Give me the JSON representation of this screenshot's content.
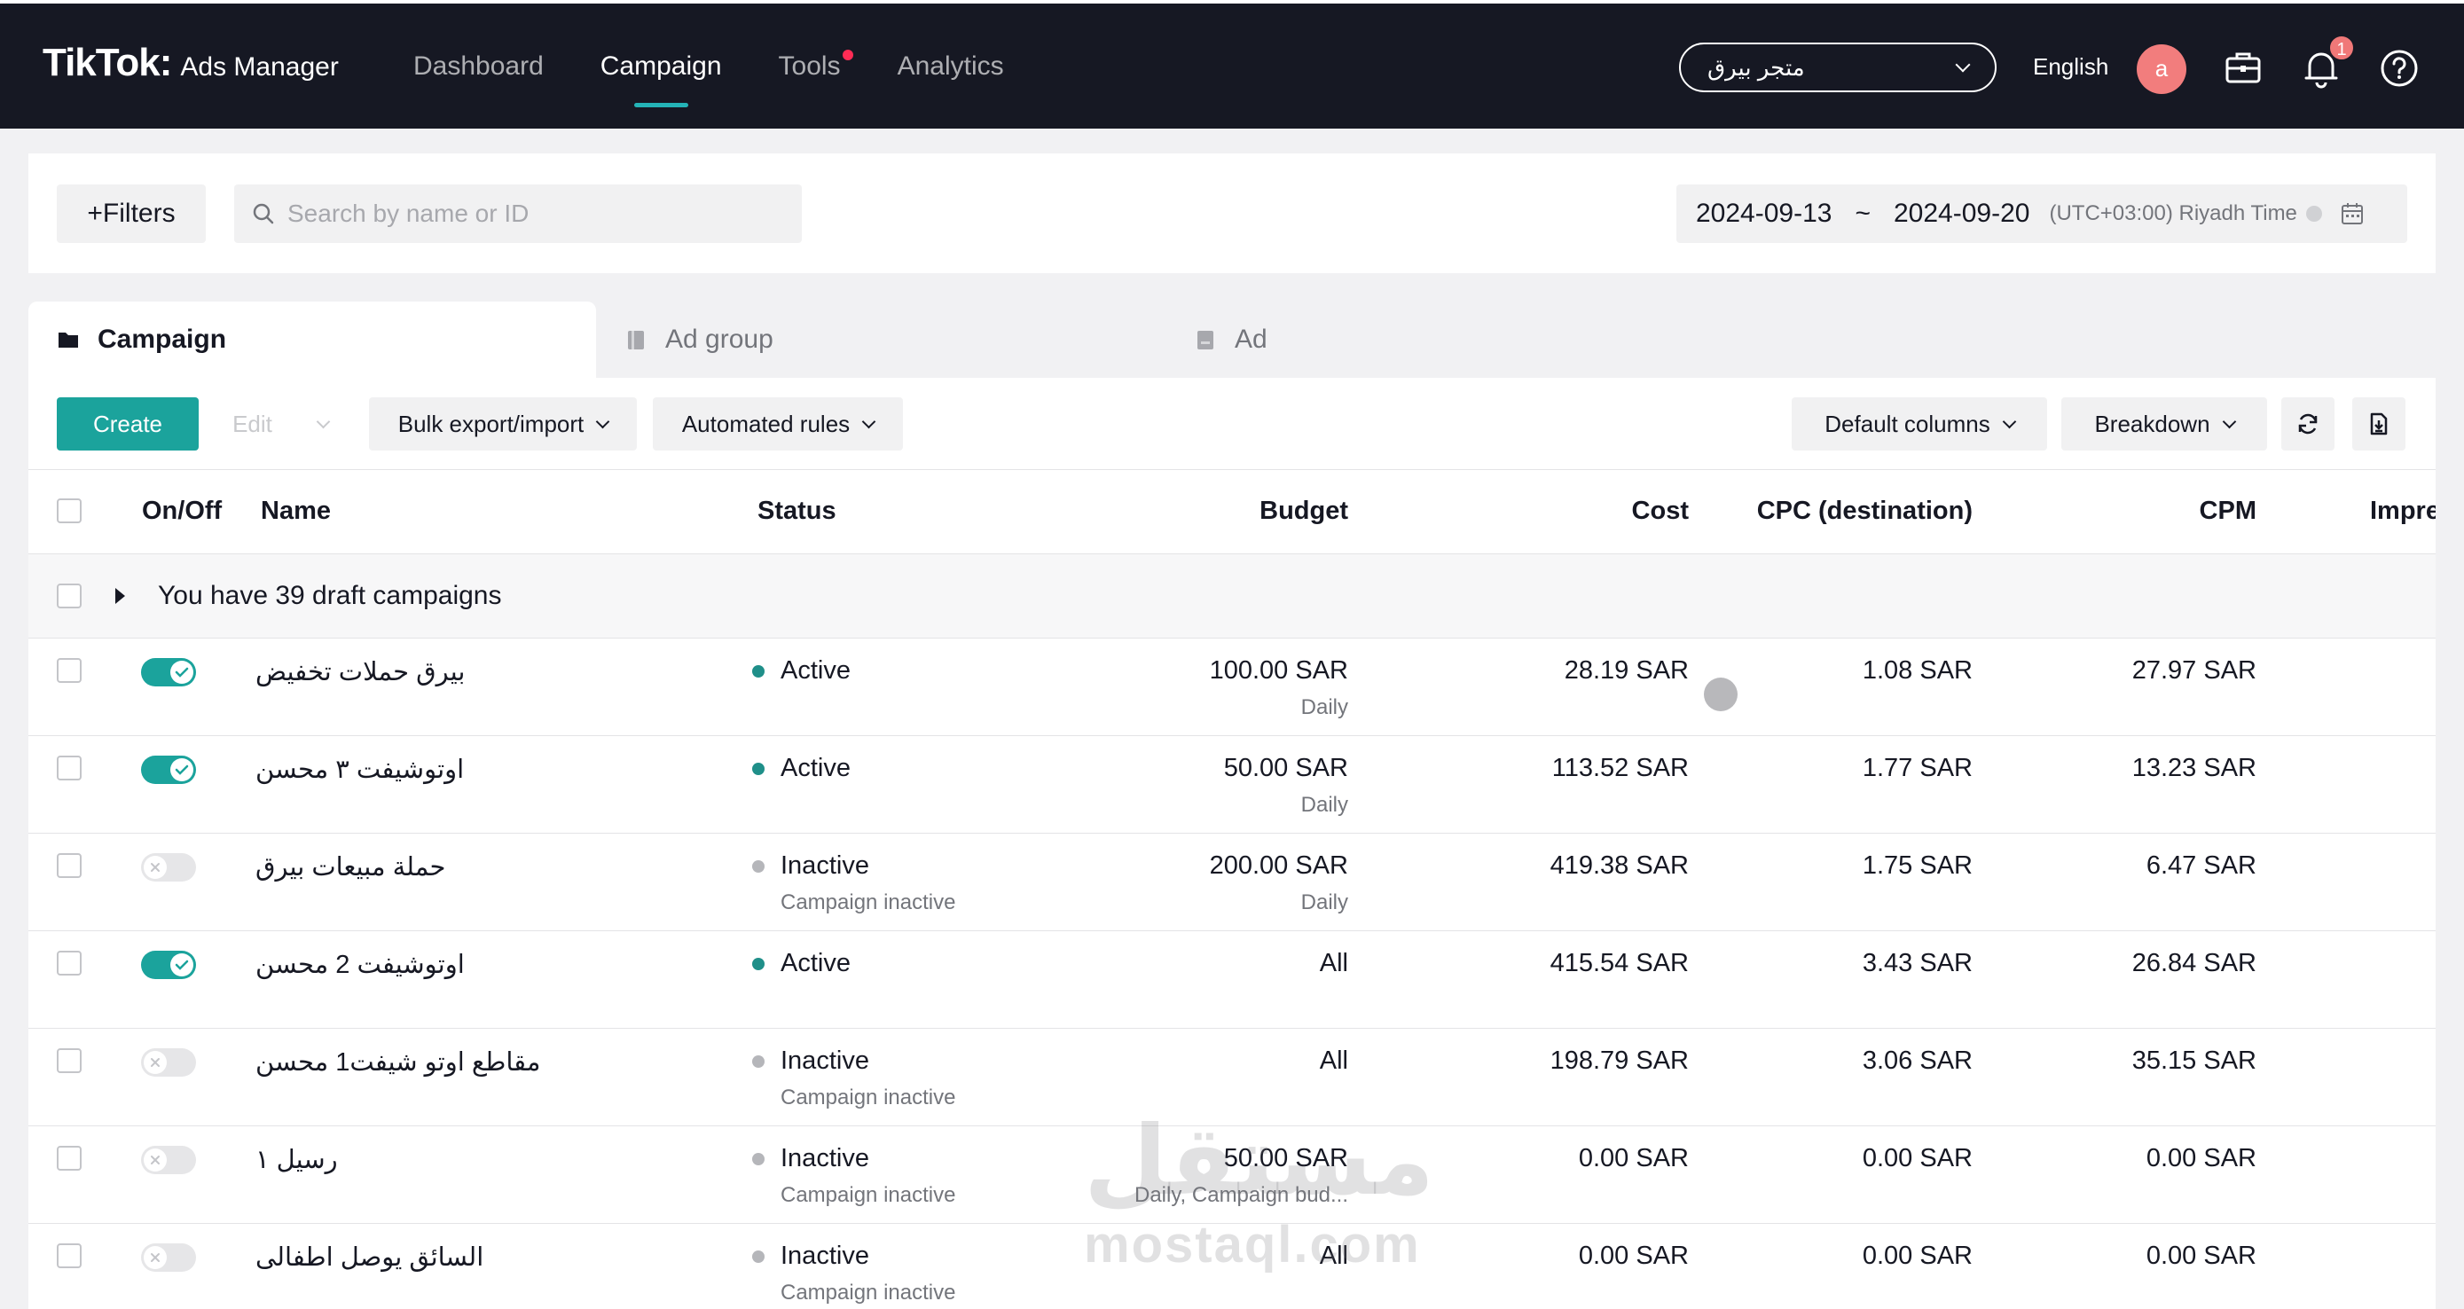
{
  "app": {
    "logo_main": "TikTok:",
    "logo_sub": "Ads Manager"
  },
  "nav": {
    "items": [
      "Dashboard",
      "Campaign",
      "Tools",
      "Analytics"
    ],
    "active": "Campaign",
    "store_select": "متجر بيرق",
    "language": "English",
    "avatar_initial": "a",
    "notification_count": "1"
  },
  "filters": {
    "filters_label": "+Filters",
    "search_placeholder": "Search by name or ID",
    "date_start": "2024-09-13",
    "date_separator": "~",
    "date_end": "2024-09-20",
    "timezone": "(UTC+03:00) Riyadh Time"
  },
  "tabs": [
    "Campaign",
    "Ad group",
    "Ad"
  ],
  "toolbar": {
    "create": "Create",
    "edit": "Edit",
    "bulk": "Bulk export/import",
    "automated": "Automated rules",
    "default_columns": "Default columns",
    "breakdown": "Breakdown"
  },
  "table": {
    "headers": {
      "onoff": "On/Off",
      "name": "Name",
      "status": "Status",
      "budget": "Budget",
      "cost": "Cost",
      "cpc": "CPC (destination)",
      "cpm": "CPM",
      "impressions": "Impre"
    },
    "draft_text": "You have 39 draft campaigns",
    "rows": [
      {
        "on": true,
        "name": "بيرق حملات تخفيض",
        "status": "Active",
        "status_sub": "",
        "budget": "100.00 SAR",
        "budget_sub": "Daily",
        "cost": "28.19 SAR",
        "cpc": "1.08 SAR",
        "cpm": "27.97 SAR"
      },
      {
        "on": true,
        "name": "اوتوشيفت ٣ محسن",
        "status": "Active",
        "status_sub": "",
        "budget": "50.00 SAR",
        "budget_sub": "Daily",
        "cost": "113.52 SAR",
        "cpc": "1.77 SAR",
        "cpm": "13.23 SAR"
      },
      {
        "on": false,
        "name": "حملة مبيعات بيرق",
        "status": "Inactive",
        "status_sub": "Campaign inactive",
        "budget": "200.00 SAR",
        "budget_sub": "Daily",
        "cost": "419.38 SAR",
        "cpc": "1.75 SAR",
        "cpm": "6.47 SAR"
      },
      {
        "on": true,
        "name": "اوتوشيفت 2 محسن",
        "status": "Active",
        "status_sub": "",
        "budget": "All",
        "budget_sub": "",
        "cost": "415.54 SAR",
        "cpc": "3.43 SAR",
        "cpm": "26.84 SAR"
      },
      {
        "on": false,
        "name": "مقاطع اوتو شيفت1 محسن",
        "status": "Inactive",
        "status_sub": "Campaign inactive",
        "budget": "All",
        "budget_sub": "",
        "cost": "198.79 SAR",
        "cpc": "3.06 SAR",
        "cpm": "35.15 SAR"
      },
      {
        "on": false,
        "name": "رسيل ١",
        "status": "Inactive",
        "status_sub": "Campaign inactive",
        "budget": "50.00 SAR",
        "budget_sub": "Daily, Campaign bud...",
        "cost": "0.00 SAR",
        "cpc": "0.00 SAR",
        "cpm": "0.00 SAR"
      },
      {
        "on": false,
        "name": "السائق يوصل اطفالى",
        "status": "Inactive",
        "status_sub": "Campaign inactive",
        "budget": "All",
        "budget_sub": "",
        "cost": "0.00 SAR",
        "cpc": "0.00 SAR",
        "cpm": "0.00 SAR"
      }
    ]
  },
  "watermark": {
    "arabic": "مستقل",
    "latin": "mostaql.com"
  },
  "colors": {
    "accent": "#1ba39c",
    "nav_bg": "#161823",
    "active_dot": "#1f8f89",
    "inactive_dot": "#b5b6ba"
  },
  "icons": [
    "search-icon",
    "calendar-icon",
    "briefcase-icon",
    "bell-icon",
    "help-icon",
    "folder-icon",
    "refresh-icon",
    "export-icon"
  ]
}
